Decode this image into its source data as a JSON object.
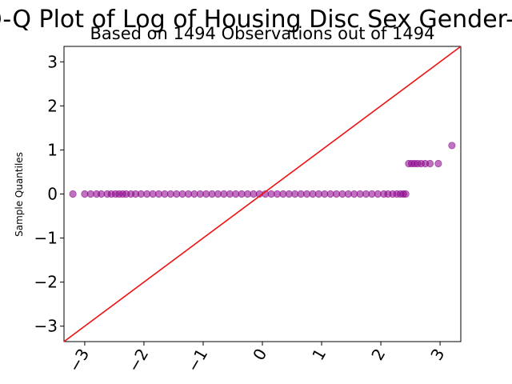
{
  "chart_data": {
    "type": "scatter",
    "title": "Q-Q Plot of Log of Housing Disc Sex Gender-P",
    "subtitle": "Based on 1494 Observations out of 1494",
    "xlabel": "",
    "ylabel": "Sample Quantiles",
    "xlim": [
      -3.35,
      3.35
    ],
    "ylim": [
      -3.35,
      3.35
    ],
    "xticks": [
      "−3",
      "−2",
      "−1",
      "0",
      "1",
      "2",
      "3"
    ],
    "yticks": [
      "−3",
      "−2",
      "−1",
      "0",
      "1",
      "2",
      "3"
    ],
    "x_tick_values": [
      -3,
      -2,
      -1,
      0,
      1,
      2,
      3
    ],
    "y_tick_values": [
      -3,
      -2,
      -1,
      0,
      1,
      2,
      3
    ],
    "grid": false,
    "reference_line": {
      "slope": 1,
      "intercept": 0,
      "color": "#ee1111"
    },
    "marker_color": "#8b008b",
    "points": [
      [
        -3.2,
        0
      ],
      [
        -3.0,
        0
      ],
      [
        -2.9,
        0
      ],
      [
        -2.8,
        0
      ],
      [
        -2.72,
        0
      ],
      [
        -2.62,
        0
      ],
      [
        -2.55,
        0
      ],
      [
        -2.48,
        0
      ],
      [
        -2.42,
        0
      ],
      [
        -2.36,
        0
      ],
      [
        -2.3,
        0
      ],
      [
        -2.22,
        0
      ],
      [
        -2.14,
        0
      ],
      [
        -2.05,
        0
      ],
      [
        -1.95,
        0
      ],
      [
        -1.85,
        0
      ],
      [
        -1.75,
        0
      ],
      [
        -1.65,
        0
      ],
      [
        -1.55,
        0
      ],
      [
        -1.45,
        0
      ],
      [
        -1.35,
        0
      ],
      [
        -1.25,
        0
      ],
      [
        -1.15,
        0
      ],
      [
        -1.05,
        0
      ],
      [
        -0.95,
        0
      ],
      [
        -0.85,
        0
      ],
      [
        -0.75,
        0
      ],
      [
        -0.65,
        0
      ],
      [
        -0.55,
        0
      ],
      [
        -0.45,
        0
      ],
      [
        -0.35,
        0
      ],
      [
        -0.25,
        0
      ],
      [
        -0.15,
        0
      ],
      [
        -0.05,
        0
      ],
      [
        0.05,
        0
      ],
      [
        0.15,
        0
      ],
      [
        0.25,
        0
      ],
      [
        0.35,
        0
      ],
      [
        0.45,
        0
      ],
      [
        0.55,
        0
      ],
      [
        0.65,
        0
      ],
      [
        0.75,
        0
      ],
      [
        0.85,
        0
      ],
      [
        0.95,
        0
      ],
      [
        1.05,
        0
      ],
      [
        1.15,
        0
      ],
      [
        1.25,
        0
      ],
      [
        1.35,
        0
      ],
      [
        1.45,
        0
      ],
      [
        1.55,
        0
      ],
      [
        1.65,
        0
      ],
      [
        1.75,
        0
      ],
      [
        1.85,
        0
      ],
      [
        1.95,
        0
      ],
      [
        2.05,
        0
      ],
      [
        2.12,
        0
      ],
      [
        2.2,
        0
      ],
      [
        2.27,
        0
      ],
      [
        2.33,
        0
      ],
      [
        2.38,
        0
      ],
      [
        2.42,
        0
      ],
      [
        2.47,
        0.69
      ],
      [
        2.52,
        0.69
      ],
      [
        2.57,
        0.69
      ],
      [
        2.62,
        0.69
      ],
      [
        2.68,
        0.69
      ],
      [
        2.75,
        0.69
      ],
      [
        2.83,
        0.69
      ],
      [
        2.97,
        0.69
      ],
      [
        3.2,
        1.1
      ]
    ]
  }
}
